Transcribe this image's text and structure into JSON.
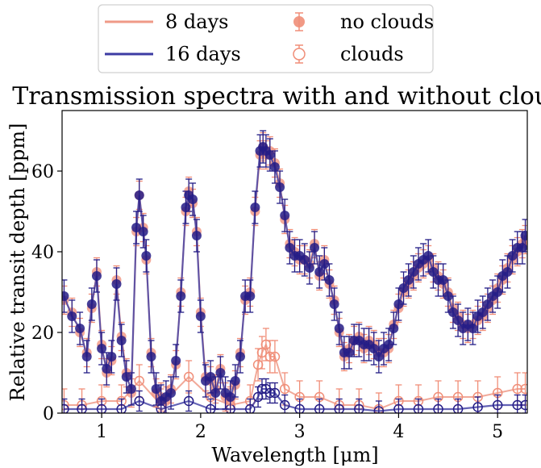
{
  "chart_data": {
    "type": "line",
    "title": "Transmission spectra with and without clouds",
    "xlabel": "Wavelength [μm]",
    "ylabel": "Relative transit depth [ppm]",
    "xlim": [
      0.6,
      5.3
    ],
    "ylim": [
      0,
      75
    ],
    "xticks": [
      1,
      2,
      3,
      4,
      5
    ],
    "yticks": [
      0,
      20,
      40,
      60
    ],
    "xtick_labels": [
      "1",
      "2",
      "3",
      "4",
      "5"
    ],
    "ytick_labels": [
      "0",
      "20",
      "40",
      "60"
    ],
    "grid": false,
    "legend_position": "top-center",
    "legend": {
      "line_8": "8 days",
      "line_16": "16 days",
      "marker_filled": "no clouds",
      "marker_open": "clouds"
    },
    "colors": {
      "days8": "#ef9a87",
      "days16": "#3c3ba3",
      "marker_filled_16": "#241c86",
      "marker_8": "#f08e78"
    },
    "series": [
      {
        "name": "8 days",
        "model": "no clouds",
        "x": [
          0.62,
          0.7,
          0.78,
          0.85,
          0.9,
          0.95,
          1.0,
          1.05,
          1.1,
          1.15,
          1.2,
          1.25,
          1.3,
          1.35,
          1.38,
          1.42,
          1.45,
          1.5,
          1.55,
          1.6,
          1.65,
          1.7,
          1.75,
          1.8,
          1.85,
          1.88,
          1.92,
          1.96,
          2.0,
          2.05,
          2.1,
          2.15,
          2.2,
          2.25,
          2.3,
          2.35,
          2.4,
          2.45,
          2.5,
          2.55,
          2.6,
          2.63,
          2.66,
          2.7,
          2.75,
          2.8,
          2.85,
          2.9,
          2.95,
          3.0,
          3.05,
          3.1,
          3.15,
          3.2,
          3.25,
          3.3,
          3.35,
          3.4,
          3.45,
          3.5,
          3.55,
          3.6,
          3.65,
          3.7,
          3.75,
          3.8,
          3.85,
          3.9,
          3.95,
          4.0,
          4.05,
          4.1,
          4.15,
          4.2,
          4.25,
          4.3,
          4.35,
          4.4,
          4.45,
          4.5,
          4.55,
          4.6,
          4.65,
          4.7,
          4.75,
          4.8,
          4.85,
          4.9,
          4.95,
          5.0,
          5.05,
          5.1,
          5.15,
          5.2,
          5.25,
          5.28
        ],
        "y": [
          28,
          25,
          20,
          15,
          26,
          35,
          17,
          10,
          13,
          33,
          19,
          10,
          5,
          45,
          54,
          46,
          38,
          15,
          5,
          4,
          3,
          6,
          12,
          30,
          50,
          55,
          52,
          45,
          25,
          9,
          8,
          6,
          11,
          4,
          3,
          7,
          15,
          28,
          30,
          50,
          64,
          66,
          64,
          65,
          62,
          57,
          48,
          42,
          40,
          38,
          38,
          37,
          42,
          34,
          38,
          32,
          28,
          20,
          14,
          16,
          18,
          19,
          16,
          18,
          17,
          15,
          15,
          16,
          22,
          26,
          30,
          32,
          34,
          36,
          37,
          38,
          36,
          34,
          32,
          30,
          26,
          24,
          22,
          21,
          22,
          23,
          24,
          26,
          28,
          31,
          33,
          36,
          38,
          40,
          42,
          43
        ]
      },
      {
        "name": "16 days",
        "model": "no clouds",
        "x": [
          0.62,
          0.7,
          0.78,
          0.85,
          0.9,
          0.95,
          1.0,
          1.05,
          1.1,
          1.15,
          1.2,
          1.25,
          1.3,
          1.35,
          1.38,
          1.42,
          1.45,
          1.5,
          1.55,
          1.6,
          1.65,
          1.7,
          1.75,
          1.8,
          1.85,
          1.88,
          1.92,
          1.96,
          2.0,
          2.05,
          2.1,
          2.15,
          2.2,
          2.25,
          2.3,
          2.35,
          2.4,
          2.45,
          2.5,
          2.55,
          2.6,
          2.63,
          2.66,
          2.7,
          2.75,
          2.8,
          2.85,
          2.9,
          2.95,
          3.0,
          3.05,
          3.1,
          3.15,
          3.2,
          3.25,
          3.3,
          3.35,
          3.4,
          3.45,
          3.5,
          3.55,
          3.6,
          3.65,
          3.7,
          3.75,
          3.8,
          3.85,
          3.9,
          3.95,
          4.0,
          4.05,
          4.1,
          4.15,
          4.2,
          4.25,
          4.3,
          4.35,
          4.4,
          4.45,
          4.5,
          4.55,
          4.6,
          4.65,
          4.7,
          4.75,
          4.8,
          4.85,
          4.9,
          4.95,
          5.0,
          5.05,
          5.1,
          5.15,
          5.2,
          5.25,
          5.28
        ],
        "y": [
          29,
          24,
          21,
          14,
          27,
          34,
          16,
          11,
          14,
          32,
          18,
          9,
          6,
          46,
          54,
          45,
          39,
          14,
          6,
          3,
          4,
          5,
          13,
          29,
          51,
          54,
          53,
          44,
          24,
          8,
          9,
          5,
          10,
          5,
          4,
          8,
          14,
          29,
          29,
          51,
          65,
          66,
          65,
          64,
          61,
          56,
          49,
          41,
          39,
          39,
          38,
          36,
          41,
          35,
          37,
          33,
          27,
          21,
          15,
          15,
          18,
          18,
          17,
          17,
          16,
          14,
          16,
          17,
          21,
          27,
          31,
          33,
          35,
          37,
          38,
          39,
          35,
          33,
          33,
          29,
          25,
          23,
          21,
          22,
          21,
          24,
          25,
          27,
          29,
          30,
          34,
          35,
          39,
          41,
          41,
          44
        ]
      },
      {
        "name": "8 days",
        "model": "clouds",
        "x": [
          0.62,
          0.8,
          1.0,
          1.2,
          1.38,
          1.6,
          1.88,
          2.1,
          2.3,
          2.5,
          2.58,
          2.62,
          2.66,
          2.7,
          2.75,
          2.85,
          3.0,
          3.2,
          3.4,
          3.6,
          3.8,
          4.0,
          4.2,
          4.4,
          4.6,
          4.8,
          5.0,
          5.2,
          5.28
        ],
        "y": [
          2,
          2,
          3,
          3,
          8,
          2,
          9,
          4,
          2,
          3,
          12,
          15,
          17,
          14,
          14,
          6,
          4,
          4,
          2,
          2,
          1,
          3,
          3,
          4,
          4,
          4,
          5,
          6,
          6
        ]
      },
      {
        "name": "16 days",
        "model": "clouds",
        "x": [
          0.62,
          0.8,
          1.0,
          1.2,
          1.38,
          1.6,
          1.88,
          2.1,
          2.3,
          2.5,
          2.58,
          2.62,
          2.66,
          2.7,
          2.75,
          2.85,
          3.0,
          3.2,
          3.4,
          3.6,
          3.8,
          4.0,
          4.2,
          4.4,
          4.6,
          4.8,
          5.0,
          5.2,
          5.28
        ],
        "y": [
          1,
          1,
          1,
          1,
          3,
          1,
          3,
          1,
          1,
          1,
          4,
          6,
          6,
          5,
          5,
          2,
          1,
          1,
          1,
          1,
          0.5,
          1,
          1,
          1,
          1,
          1.5,
          2,
          2,
          2
        ]
      }
    ]
  }
}
